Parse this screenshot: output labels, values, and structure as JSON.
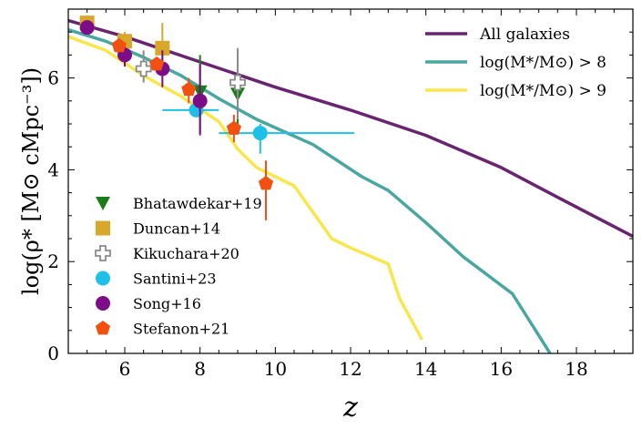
{
  "chart_data": {
    "type": "line",
    "title": "",
    "xlabel": "z",
    "ylabel": "log(ρ* [M⊙ cMpc⁻³])",
    "xlim": [
      4.5,
      19.5
    ],
    "ylim": [
      0,
      7.5
    ],
    "xticks": [
      6,
      8,
      10,
      12,
      14,
      16,
      18
    ],
    "yticks": [
      0,
      2,
      4,
      6
    ],
    "xtick_labels": [
      "6",
      "8",
      "10",
      "12",
      "14",
      "16",
      "18"
    ],
    "ytick_labels": [
      "0",
      "2",
      "4",
      "6"
    ],
    "legend_location": "top-right",
    "series": [
      {
        "name": "All galaxies",
        "color": "#68246f",
        "x": [
          4.5,
          6,
          8,
          10,
          12,
          14,
          16,
          17.5,
          19.5
        ],
        "y": [
          7.25,
          6.9,
          6.35,
          5.8,
          5.3,
          4.75,
          4.05,
          3.4,
          2.55
        ]
      },
      {
        "name": "log(M*/M⊙) > 8",
        "color": "#4aa6a0",
        "x": [
          4.5,
          5.5,
          6.5,
          7.5,
          8.5,
          9.5,
          11,
          12.3,
          13,
          14,
          15,
          16.3,
          17.3
        ],
        "y": [
          7.05,
          6.8,
          6.45,
          6.05,
          5.55,
          5.1,
          4.55,
          3.85,
          3.55,
          2.85,
          2.1,
          1.3,
          0
        ]
      },
      {
        "name": "log(M*/M⊙) > 9",
        "color": "#f9e64d",
        "x": [
          4.5,
          5.5,
          6.5,
          7.5,
          8.5,
          9,
          9.5,
          10.5,
          11.5,
          12,
          13,
          13.3,
          13.9
        ],
        "y": [
          6.9,
          6.6,
          6.05,
          5.6,
          5.05,
          4.45,
          4.05,
          3.65,
          2.5,
          2.3,
          1.95,
          1.2,
          0.3
        ]
      }
    ],
    "scatter_series": [
      {
        "name": "Bhatawdekar+19",
        "color": "#1a7d1a",
        "marker": "triangle-down",
        "points": [
          {
            "x": 8.0,
            "y": 5.7,
            "ylo": 4.8,
            "yhi": 6.5
          },
          {
            "x": 9.0,
            "y": 5.65,
            "ylo": 4.9,
            "yhi": 6.3
          }
        ]
      },
      {
        "name": "Duncan+14",
        "color": "#d9a82b",
        "marker": "square",
        "points": [
          {
            "x": 5.0,
            "y": 7.2,
            "ylo": 7.0,
            "yhi": 7.35
          },
          {
            "x": 6.0,
            "y": 6.8,
            "ylo": 6.55,
            "yhi": 7.0
          },
          {
            "x": 7.0,
            "y": 6.65,
            "ylo": 6.15,
            "yhi": 7.2
          }
        ]
      },
      {
        "name": "Kikuchara+20",
        "color": "#8a8a8a",
        "marker": "plus-hollow",
        "points": [
          {
            "x": 6.5,
            "y": 6.2,
            "ylo": 5.9,
            "yhi": 6.6
          },
          {
            "x": 9.0,
            "y": 5.9,
            "ylo": 5.1,
            "yhi": 6.65
          }
        ]
      },
      {
        "name": "Santini+23",
        "color": "#1ec0e8",
        "marker": "circle",
        "points": [
          {
            "x": 7.9,
            "y": 5.3,
            "xlo": 7.0,
            "xhi": 8.5
          },
          {
            "x": 9.6,
            "y": 4.8,
            "xlo": 8.5,
            "xhi": 12.1,
            "ylo": 4.35,
            "yhi": 5.0
          }
        ]
      },
      {
        "name": "Song+16",
        "color": "#7d0d87",
        "marker": "circle",
        "points": [
          {
            "x": 5.0,
            "y": 7.1
          },
          {
            "x": 6.0,
            "y": 6.5,
            "ylo": 6.25,
            "yhi": 6.7
          },
          {
            "x": 7.0,
            "y": 6.2,
            "ylo": 5.8,
            "yhi": 6.6
          },
          {
            "x": 8.0,
            "y": 5.5,
            "ylo": 4.75,
            "yhi": 6.3
          }
        ]
      },
      {
        "name": "Stefanon+21",
        "color": "#f25010",
        "marker": "pentagon",
        "points": [
          {
            "x": 5.85,
            "y": 6.7
          },
          {
            "x": 6.85,
            "y": 6.3
          },
          {
            "x": 7.7,
            "y": 5.75,
            "ylo": 5.45,
            "yhi": 6.0
          },
          {
            "x": 8.9,
            "y": 4.9,
            "ylo": 4.6,
            "yhi": 5.2
          },
          {
            "x": 9.75,
            "y": 3.7,
            "ylo": 2.9,
            "yhi": 4.2
          }
        ]
      }
    ]
  }
}
